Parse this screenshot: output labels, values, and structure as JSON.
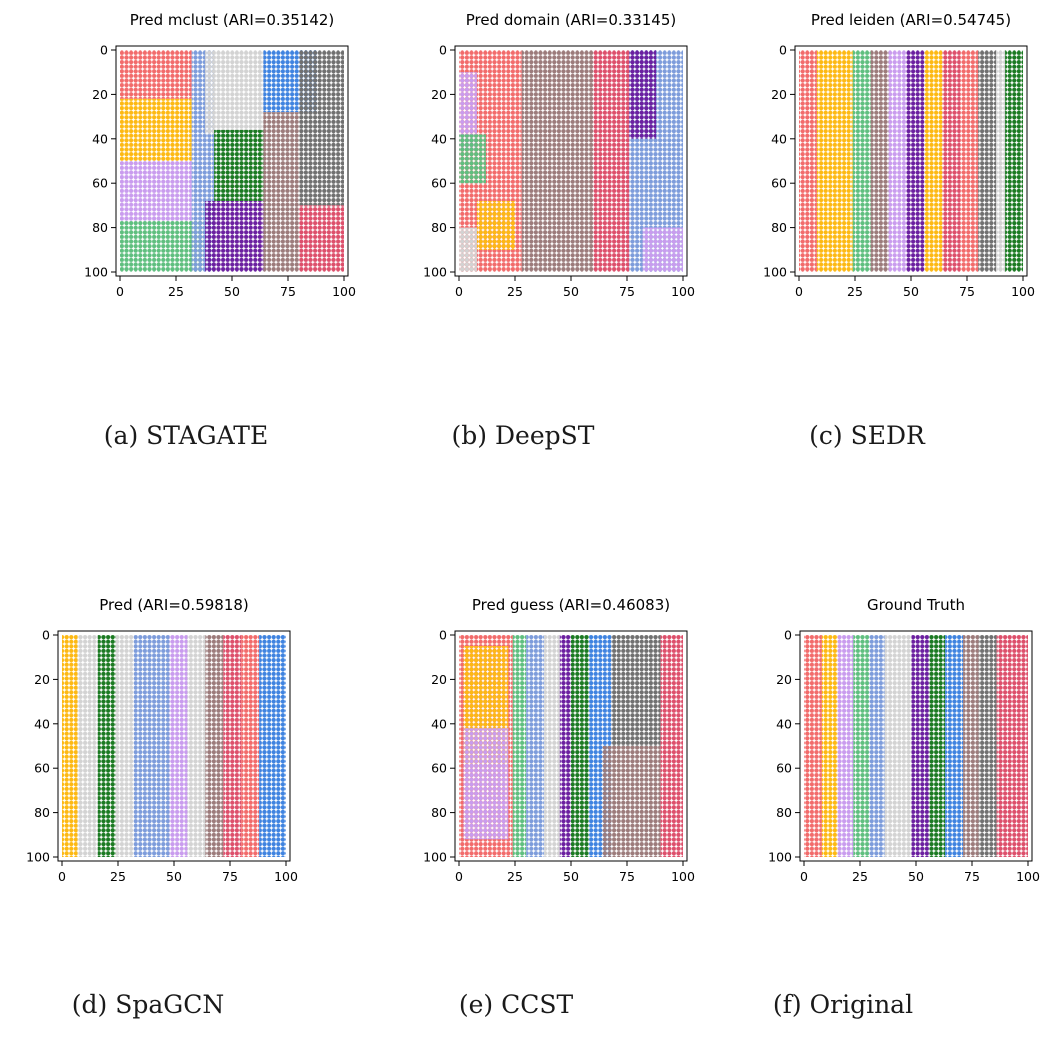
{
  "palette": {
    "salmon": "#f26b6b",
    "amber": "#fdb913",
    "lilac": "#c99cee",
    "mint": "#5fbf7f",
    "periwinkle": "#7d9cdb",
    "silver": "#d3d3d3",
    "violet": "#6b1fa0",
    "forest": "#1b7a22",
    "azure": "#3f83e0",
    "taupe": "#9c7b7b",
    "slate": "#707070",
    "crimson": "#dd4f6b"
  },
  "axes": {
    "x_ticks": [
      "0",
      "25",
      "50",
      "75",
      "100"
    ],
    "y_ticks": [
      "0",
      "20",
      "40",
      "60",
      "80",
      "100"
    ]
  },
  "chart_data": [
    {
      "type": "scatter",
      "title": "Pred mclust (ARI=0.35142)",
      "caption": "(a) STAGATE",
      "xlim": [
        0,
        100
      ],
      "ylim": [
        100,
        0
      ],
      "grid": false,
      "regions": [
        {
          "label": "salmon",
          "x": [
            0,
            32
          ],
          "y": [
            0,
            22
          ]
        },
        {
          "label": "amber",
          "x": [
            0,
            32
          ],
          "y": [
            22,
            50
          ]
        },
        {
          "label": "lilac",
          "x": [
            0,
            32
          ],
          "y": [
            50,
            77
          ]
        },
        {
          "label": "mint",
          "x": [
            0,
            37
          ],
          "y": [
            77,
            100
          ]
        },
        {
          "label": "periwinkle",
          "x": [
            32,
            42
          ],
          "y": [
            0,
            100
          ]
        },
        {
          "label": "silver",
          "x": [
            38,
            64
          ],
          "y": [
            0,
            38
          ]
        },
        {
          "label": "forest",
          "x": [
            42,
            64
          ],
          "y": [
            36,
            68
          ]
        },
        {
          "label": "violet",
          "x": [
            38,
            64
          ],
          "y": [
            68,
            100
          ]
        },
        {
          "label": "azure",
          "x": [
            64,
            88
          ],
          "y": [
            0,
            28
          ]
        },
        {
          "label": "taupe",
          "x": [
            64,
            80
          ],
          "y": [
            28,
            100
          ]
        },
        {
          "label": "slate",
          "x": [
            80,
            100
          ],
          "y": [
            0,
            70
          ]
        },
        {
          "label": "crimson",
          "x": [
            80,
            100
          ],
          "y": [
            70,
            100
          ]
        }
      ]
    },
    {
      "type": "scatter",
      "title": "Pred domain (ARI=0.33145)",
      "caption": "(b) DeepST",
      "xlim": [
        0,
        100
      ],
      "ylim": [
        100,
        0
      ],
      "grid": false,
      "regions": [
        {
          "label": "salmon",
          "x": [
            0,
            28
          ],
          "y": [
            0,
            100
          ]
        },
        {
          "label": "lilac",
          "x": [
            0,
            8
          ],
          "y": [
            10,
            45
          ]
        },
        {
          "label": "mint",
          "x": [
            0,
            12
          ],
          "y": [
            38,
            60
          ]
        },
        {
          "label": "amber",
          "x": [
            8,
            25
          ],
          "y": [
            68,
            90
          ]
        },
        {
          "label": "silver",
          "x": [
            0,
            8
          ],
          "y": [
            80,
            100
          ]
        },
        {
          "label": "taupe",
          "x": [
            28,
            60
          ],
          "y": [
            0,
            100
          ]
        },
        {
          "label": "crimson",
          "x": [
            60,
            76
          ],
          "y": [
            0,
            100
          ]
        },
        {
          "label": "periwinkle",
          "x": [
            76,
            100
          ],
          "y": [
            0,
            100
          ]
        },
        {
          "label": "violet",
          "x": [
            76,
            88
          ],
          "y": [
            0,
            40
          ]
        },
        {
          "label": "lilac",
          "x": [
            82,
            100
          ],
          "y": [
            80,
            100
          ]
        }
      ]
    },
    {
      "type": "scatter",
      "title": "Pred leiden (ARI=0.54745)",
      "caption": "(c) SEDR",
      "xlim": [
        0,
        100
      ],
      "ylim": [
        100,
        0
      ],
      "grid": false,
      "regions": [
        {
          "label": "salmon",
          "x": [
            0,
            8
          ],
          "y": [
            0,
            100
          ]
        },
        {
          "label": "amber",
          "x": [
            8,
            24
          ],
          "y": [
            0,
            100
          ]
        },
        {
          "label": "mint",
          "x": [
            24,
            32
          ],
          "y": [
            0,
            100
          ]
        },
        {
          "label": "taupe",
          "x": [
            32,
            40
          ],
          "y": [
            0,
            100
          ]
        },
        {
          "label": "lilac",
          "x": [
            40,
            48
          ],
          "y": [
            0,
            100
          ]
        },
        {
          "label": "violet",
          "x": [
            48,
            56
          ],
          "y": [
            0,
            100
          ]
        },
        {
          "label": "amber",
          "x": [
            56,
            64
          ],
          "y": [
            0,
            100
          ]
        },
        {
          "label": "crimson",
          "x": [
            64,
            72
          ],
          "y": [
            0,
            100
          ]
        },
        {
          "label": "salmon",
          "x": [
            72,
            80
          ],
          "y": [
            0,
            100
          ]
        },
        {
          "label": "slate",
          "x": [
            80,
            88
          ],
          "y": [
            0,
            100
          ]
        },
        {
          "label": "silver",
          "x": [
            88,
            92
          ],
          "y": [
            0,
            100
          ]
        },
        {
          "label": "forest",
          "x": [
            92,
            100
          ],
          "y": [
            0,
            100
          ]
        }
      ]
    },
    {
      "type": "scatter",
      "title": "Pred (ARI=0.59818)",
      "caption": "(d) SpaGCN",
      "xlim": [
        0,
        100
      ],
      "ylim": [
        100,
        0
      ],
      "grid": false,
      "regions": [
        {
          "label": "amber",
          "x": [
            0,
            7
          ],
          "y": [
            0,
            100
          ]
        },
        {
          "label": "silver",
          "x": [
            7,
            16
          ],
          "y": [
            0,
            100
          ]
        },
        {
          "label": "forest",
          "x": [
            16,
            24
          ],
          "y": [
            0,
            100
          ]
        },
        {
          "label": "silver",
          "x": [
            24,
            32
          ],
          "y": [
            0,
            100
          ]
        },
        {
          "label": "periwinkle",
          "x": [
            32,
            48
          ],
          "y": [
            0,
            100
          ]
        },
        {
          "label": "lilac",
          "x": [
            48,
            56
          ],
          "y": [
            0,
            100
          ]
        },
        {
          "label": "silver",
          "x": [
            56,
            64
          ],
          "y": [
            0,
            100
          ]
        },
        {
          "label": "taupe",
          "x": [
            64,
            72
          ],
          "y": [
            0,
            100
          ]
        },
        {
          "label": "crimson",
          "x": [
            72,
            80
          ],
          "y": [
            0,
            100
          ]
        },
        {
          "label": "salmon",
          "x": [
            80,
            88
          ],
          "y": [
            0,
            100
          ]
        },
        {
          "label": "azure",
          "x": [
            88,
            100
          ],
          "y": [
            0,
            100
          ]
        }
      ]
    },
    {
      "type": "scatter",
      "title": "Pred guess (ARI=0.46083)",
      "caption": "(e) CCST",
      "xlim": [
        0,
        100
      ],
      "ylim": [
        100,
        0
      ],
      "grid": false,
      "regions": [
        {
          "label": "salmon",
          "x": [
            0,
            24
          ],
          "y": [
            0,
            100
          ]
        },
        {
          "label": "amber",
          "x": [
            2,
            22
          ],
          "y": [
            5,
            58
          ]
        },
        {
          "label": "lilac",
          "x": [
            2,
            22
          ],
          "y": [
            42,
            92
          ]
        },
        {
          "label": "mint",
          "x": [
            24,
            30
          ],
          "y": [
            0,
            100
          ]
        },
        {
          "label": "periwinkle",
          "x": [
            30,
            38
          ],
          "y": [
            0,
            100
          ]
        },
        {
          "label": "silver",
          "x": [
            38,
            45
          ],
          "y": [
            0,
            100
          ]
        },
        {
          "label": "violet",
          "x": [
            45,
            50
          ],
          "y": [
            0,
            100
          ]
        },
        {
          "label": "forest",
          "x": [
            50,
            58
          ],
          "y": [
            0,
            100
          ]
        },
        {
          "label": "azure",
          "x": [
            58,
            68
          ],
          "y": [
            0,
            100
          ]
        },
        {
          "label": "slate",
          "x": [
            68,
            90
          ],
          "y": [
            0,
            50
          ]
        },
        {
          "label": "taupe",
          "x": [
            64,
            90
          ],
          "y": [
            50,
            100
          ]
        },
        {
          "label": "crimson",
          "x": [
            90,
            100
          ],
          "y": [
            0,
            100
          ]
        }
      ]
    },
    {
      "type": "scatter",
      "title": "Ground Truth",
      "caption": "(f) Original",
      "xlim": [
        0,
        100
      ],
      "ylim": [
        100,
        0
      ],
      "grid": false,
      "regions": [
        {
          "label": "salmon",
          "x": [
            0,
            8
          ],
          "y": [
            0,
            100
          ]
        },
        {
          "label": "amber",
          "x": [
            8,
            15
          ],
          "y": [
            0,
            100
          ]
        },
        {
          "label": "lilac",
          "x": [
            15,
            22
          ],
          "y": [
            0,
            100
          ]
        },
        {
          "label": "mint",
          "x": [
            22,
            29
          ],
          "y": [
            0,
            100
          ]
        },
        {
          "label": "periwinkle",
          "x": [
            29,
            36
          ],
          "y": [
            0,
            100
          ]
        },
        {
          "label": "silver",
          "x": [
            36,
            48
          ],
          "y": [
            0,
            100
          ]
        },
        {
          "label": "violet",
          "x": [
            48,
            56
          ],
          "y": [
            0,
            100
          ]
        },
        {
          "label": "forest",
          "x": [
            56,
            63
          ],
          "y": [
            0,
            100
          ]
        },
        {
          "label": "azure",
          "x": [
            63,
            71
          ],
          "y": [
            0,
            100
          ]
        },
        {
          "label": "taupe",
          "x": [
            71,
            78
          ],
          "y": [
            0,
            100
          ]
        },
        {
          "label": "slate",
          "x": [
            78,
            86
          ],
          "y": [
            0,
            100
          ]
        },
        {
          "label": "crimson",
          "x": [
            86,
            100
          ],
          "y": [
            0,
            100
          ]
        }
      ]
    }
  ]
}
